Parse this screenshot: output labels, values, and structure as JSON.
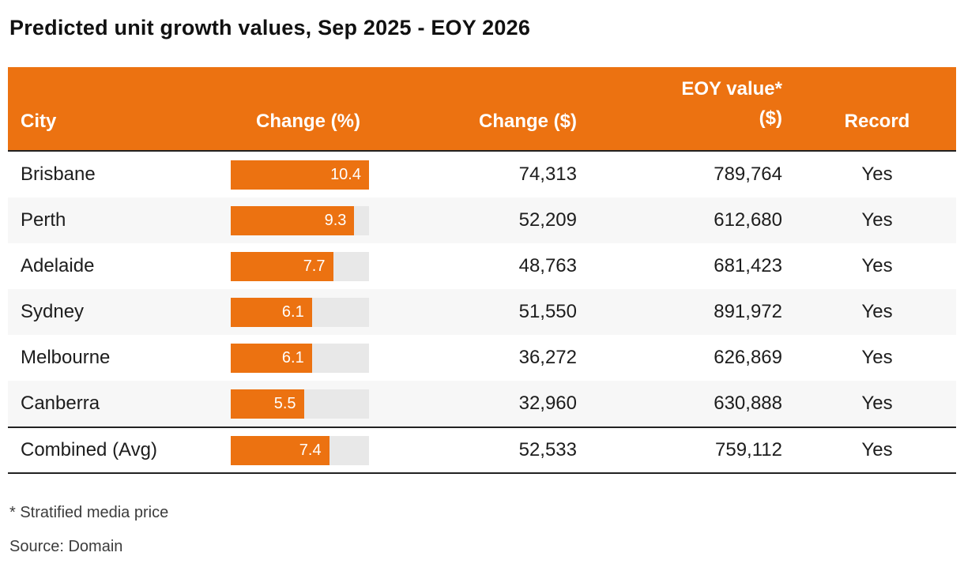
{
  "title": "Predicted unit growth values, Sep 2025 - EOY 2026",
  "header": {
    "columns": [
      "City",
      "Change (%)",
      "Change ($)",
      "EOY value*\n($)",
      "Record"
    ]
  },
  "footnotes": {
    "stratified": "* Stratified media price",
    "source": "Source: Domain"
  },
  "colors": {
    "accent": "#ec7211",
    "bar_track": "#e8e8e8",
    "row_alt": "#f7f7f7",
    "rule": "#222222"
  },
  "chart_data": {
    "type": "table",
    "title": "Predicted unit growth values, Sep 2025 - EOY 2026",
    "columns": [
      "City",
      "Change (%)",
      "Change ($)",
      "EOY value* ($)",
      "Record"
    ],
    "bar_column": "Change (%)",
    "bar_max": 10.4,
    "rows": [
      [
        "Brisbane",
        10.4,
        "74,313",
        "789,764",
        "Yes"
      ],
      [
        "Perth",
        9.3,
        "52,209",
        "612,680",
        "Yes"
      ],
      [
        "Adelaide",
        7.7,
        "48,763",
        "681,423",
        "Yes"
      ],
      [
        "Sydney",
        6.1,
        "51,550",
        "891,972",
        "Yes"
      ],
      [
        "Melbourne",
        6.1,
        "36,272",
        "626,869",
        "Yes"
      ],
      [
        "Canberra",
        5.5,
        "32,960",
        "630,888",
        "Yes"
      ],
      [
        "Combined (Avg)",
        7.4,
        "52,533",
        "759,112",
        "Yes"
      ]
    ]
  }
}
